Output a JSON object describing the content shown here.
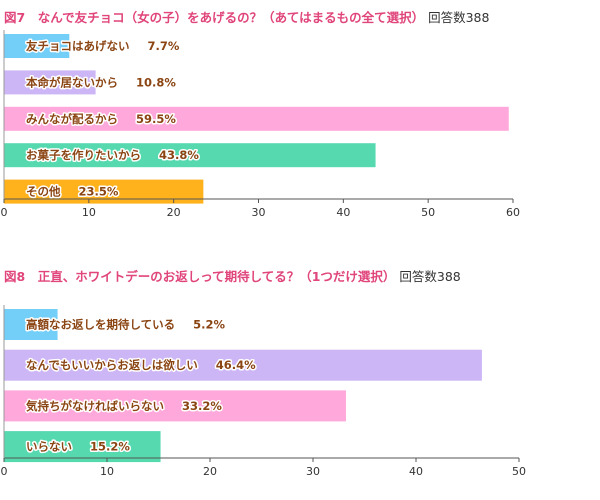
{
  "chart_data": [
    {
      "type": "bar",
      "orientation": "horizontal",
      "title": "図7　なんで友チョコ（女の子）をあげるの？（あてはまるもの全て選択）",
      "count_label": "回答数388",
      "categories": [
        "友チョコはあげない",
        "本命が居ないから",
        "みんなが配るから",
        "お菓子を作りたいから",
        "その他"
      ],
      "values": [
        7.7,
        10.8,
        59.5,
        43.8,
        23.5
      ],
      "value_labels": [
        "7.7%",
        "10.8%",
        "59.5%",
        "43.8%",
        "23.5%"
      ],
      "colors": [
        "#74cff8",
        "#cdb6f5",
        "#ffa8db",
        "#57d9b0",
        "#ffb21c"
      ],
      "label_color": "#8b4513",
      "xlim": [
        0,
        60
      ],
      "xticks": [
        0,
        10,
        20,
        30,
        40,
        50,
        60
      ],
      "grid": false,
      "xlabel": "",
      "ylabel": ""
    },
    {
      "type": "bar",
      "orientation": "horizontal",
      "title": "図8　正直、ホワイトデーのお返しって期待してる？（1つだけ選択）",
      "count_label": "回答数388",
      "categories": [
        "高額なお返しを期待している",
        "なんでもいいからお返しは欲しい",
        "気持ちがなければいらない",
        "いらない"
      ],
      "values": [
        5.2,
        46.4,
        33.2,
        15.2
      ],
      "value_labels": [
        "5.2%",
        "46.4%",
        "33.2%",
        "15.2%"
      ],
      "colors": [
        "#74cff8",
        "#cdb6f5",
        "#ffa8db",
        "#57d9b0"
      ],
      "label_color": "#8b4513",
      "xlim": [
        0,
        50
      ],
      "xticks": [
        0,
        10,
        20,
        30,
        40,
        50
      ],
      "grid": false,
      "xlabel": "",
      "ylabel": ""
    }
  ]
}
